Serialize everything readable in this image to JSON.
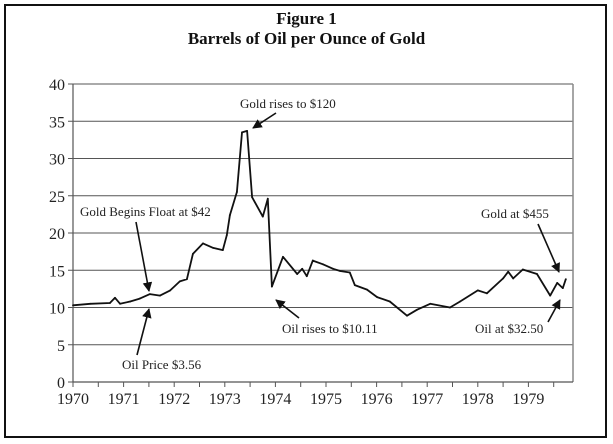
{
  "chart_data": {
    "type": "line",
    "title": "Figure 1",
    "subtitle": "Barrels of Oil per Ounce of Gold",
    "xlabel": "",
    "ylabel": "",
    "xlim": [
      1970,
      1979.85
    ],
    "ylim": [
      0,
      40
    ],
    "grid": true,
    "x_ticks": [
      "1970",
      "1971",
      "1972",
      "1973",
      "1974",
      "1975",
      "1976",
      "1977",
      "1978",
      "1979"
    ],
    "y_ticks": [
      "0",
      "5",
      "10",
      "15",
      "20",
      "25",
      "30",
      "35",
      "40"
    ],
    "series": [
      {
        "name": "Barrels of Oil per Ounce of Gold",
        "x": [
          1970.0,
          1970.34,
          1970.73,
          1970.83,
          1970.93,
          1971.13,
          1971.32,
          1971.52,
          1971.72,
          1971.92,
          1972.11,
          1972.25,
          1972.37,
          1972.57,
          1972.77,
          1972.96,
          1973.04,
          1973.1,
          1973.24,
          1973.34,
          1973.44,
          1973.54,
          1973.75,
          1973.85,
          1973.93,
          1974.15,
          1974.43,
          1974.53,
          1974.62,
          1974.74,
          1974.94,
          1975.14,
          1975.28,
          1975.47,
          1975.57,
          1975.81,
          1976.01,
          1976.26,
          1976.6,
          1976.8,
          1977.06,
          1977.45,
          1977.65,
          1978.0,
          1978.18,
          1978.5,
          1978.6,
          1978.7,
          1978.89,
          1979.17,
          1979.43,
          1979.57,
          1979.68,
          1979.74
        ],
        "y": [
          10.3,
          10.5,
          10.6,
          11.3,
          10.5,
          10.8,
          11.2,
          11.8,
          11.6,
          12.3,
          13.5,
          13.8,
          17.2,
          18.6,
          18.0,
          17.7,
          19.7,
          22.4,
          25.5,
          33.5,
          33.7,
          24.8,
          22.2,
          24.6,
          12.8,
          16.8,
          14.5,
          15.2,
          14.2,
          16.3,
          15.8,
          15.2,
          14.9,
          14.7,
          13.0,
          12.4,
          11.4,
          10.8,
          8.9,
          9.7,
          10.5,
          10.0,
          10.8,
          12.3,
          11.9,
          13.9,
          14.8,
          13.9,
          15.1,
          14.5,
          11.6,
          13.3,
          12.6,
          13.8
        ]
      }
    ],
    "annotations": [
      {
        "text": "Gold rises to $120"
      },
      {
        "text": "Gold Begins Float at $42"
      },
      {
        "text": "Oil Price $3.56"
      },
      {
        "text": "Oil rises to $10.11"
      },
      {
        "text": "Gold at $455"
      },
      {
        "text": "Oil at $32.50"
      }
    ]
  }
}
